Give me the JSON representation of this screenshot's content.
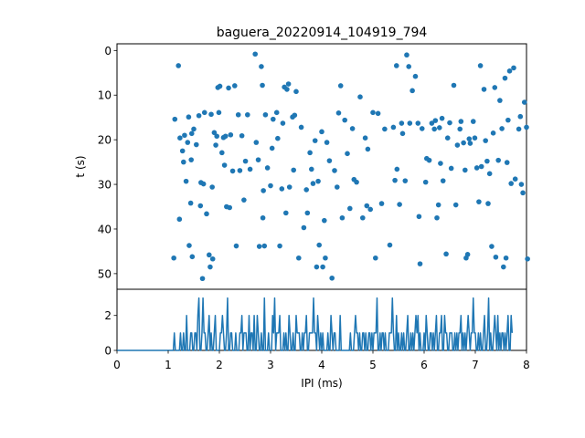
{
  "chart_data": [
    {
      "type": "scatter",
      "title": "baguera_20220914_104919_794",
      "xlabel": "",
      "ylabel": "t (s)",
      "xlim": [
        0,
        8
      ],
      "ylim": [
        53.5,
        -1.5
      ],
      "y_inverted": true,
      "yticks": [
        "0",
        "10",
        "20",
        "30",
        "40",
        "50"
      ],
      "color": "#1f77b4",
      "points": [
        [
          1.11,
          46.5
        ],
        [
          1.13,
          15.4
        ],
        [
          1.2,
          3.4
        ],
        [
          1.22,
          37.8
        ],
        [
          1.23,
          19.6
        ],
        [
          1.28,
          22.5
        ],
        [
          1.3,
          25
        ],
        [
          1.32,
          19
        ],
        [
          1.35,
          29.3
        ],
        [
          1.38,
          20.6
        ],
        [
          1.4,
          14.9
        ],
        [
          1.41,
          43.7
        ],
        [
          1.44,
          34.2
        ],
        [
          1.45,
          24.5
        ],
        [
          1.46,
          18.6
        ],
        [
          1.47,
          46.2
        ],
        [
          1.5,
          17.6
        ],
        [
          1.55,
          21.1
        ],
        [
          1.6,
          14.6
        ],
        [
          1.63,
          34.8
        ],
        [
          1.64,
          29.6
        ],
        [
          1.67,
          51.1
        ],
        [
          1.69,
          29.9
        ],
        [
          1.71,
          13.9
        ],
        [
          1.75,
          36.6
        ],
        [
          1.8,
          45.8
        ],
        [
          1.82,
          48.5
        ],
        [
          1.84,
          14.3
        ],
        [
          1.86,
          30.6
        ],
        [
          1.87,
          46.7
        ],
        [
          1.9,
          18.4
        ],
        [
          1.93,
          21.2
        ],
        [
          1.95,
          19.2
        ],
        [
          1.97,
          8.3
        ],
        [
          1.99,
          13.9
        ],
        [
          2.01,
          8
        ],
        [
          2.05,
          22.9
        ],
        [
          2.08,
          19.5
        ],
        [
          2.1,
          25.7
        ],
        [
          2.12,
          19.2
        ],
        [
          2.14,
          35
        ],
        [
          2.18,
          8.4
        ],
        [
          2.2,
          35.2
        ],
        [
          2.22,
          18.9
        ],
        [
          2.26,
          27
        ],
        [
          2.3,
          7.9
        ],
        [
          2.33,
          43.8
        ],
        [
          2.37,
          14.4
        ],
        [
          2.4,
          26.9
        ],
        [
          2.44,
          19.1
        ],
        [
          2.48,
          33.5
        ],
        [
          2.51,
          24.8
        ],
        [
          2.55,
          14.4
        ],
        [
          2.6,
          26.6
        ],
        [
          2.7,
          0.8
        ],
        [
          2.72,
          20.6
        ],
        [
          2.76,
          24.5
        ],
        [
          2.78,
          43.9
        ],
        [
          2.82,
          3.6
        ],
        [
          2.84,
          7.8
        ],
        [
          2.85,
          37.5
        ],
        [
          2.86,
          31.4
        ],
        [
          2.88,
          43.8
        ],
        [
          2.9,
          14.4
        ],
        [
          2.94,
          26.3
        ],
        [
          3,
          30.3
        ],
        [
          3.03,
          21.9
        ],
        [
          3.05,
          15.4
        ],
        [
          3.12,
          13.9
        ],
        [
          3.14,
          19.7
        ],
        [
          3.18,
          43.8
        ],
        [
          3.22,
          31
        ],
        [
          3.24,
          16.3
        ],
        [
          3.27,
          8.2
        ],
        [
          3.3,
          36.4
        ],
        [
          3.32,
          8.7
        ],
        [
          3.35,
          7.5
        ],
        [
          3.37,
          30.6
        ],
        [
          3.43,
          14.9
        ],
        [
          3.45,
          26.8
        ],
        [
          3.47,
          14.5
        ],
        [
          3.5,
          9.2
        ],
        [
          3.55,
          46.5
        ],
        [
          3.6,
          17.2
        ],
        [
          3.65,
          39.7
        ],
        [
          3.7,
          31.2
        ],
        [
          3.72,
          36.4
        ],
        [
          3.77,
          22.9
        ],
        [
          3.8,
          26.6
        ],
        [
          3.83,
          29.8
        ],
        [
          3.87,
          20.2
        ],
        [
          3.9,
          48.5
        ],
        [
          3.93,
          29.3
        ],
        [
          3.95,
          43.6
        ],
        [
          4,
          18.2
        ],
        [
          4.02,
          48.5
        ],
        [
          4.05,
          38.1
        ],
        [
          4.07,
          46.5
        ],
        [
          4.1,
          20.6
        ],
        [
          4.15,
          24.7
        ],
        [
          4.2,
          51
        ],
        [
          4.25,
          26.9
        ],
        [
          4.3,
          30.6
        ],
        [
          4.33,
          14
        ],
        [
          4.37,
          7.9
        ],
        [
          4.4,
          37.5
        ],
        [
          4.45,
          15.6
        ],
        [
          4.5,
          23.1
        ],
        [
          4.55,
          35.4
        ],
        [
          4.6,
          17.5
        ],
        [
          4.63,
          28.9
        ],
        [
          4.68,
          29.5
        ],
        [
          4.75,
          10.4
        ],
        [
          4.8,
          37.5
        ],
        [
          4.85,
          19.6
        ],
        [
          4.88,
          34.8
        ],
        [
          4.9,
          22.1
        ],
        [
          4.95,
          35.6
        ],
        [
          5,
          13.9
        ],
        [
          5.05,
          46.5
        ],
        [
          5.1,
          14.1
        ],
        [
          5.17,
          34.3
        ],
        [
          5.23,
          17.6
        ],
        [
          5.33,
          43.6
        ],
        [
          5.4,
          17.2
        ],
        [
          5.43,
          29.1
        ],
        [
          5.46,
          3.4
        ],
        [
          5.47,
          26.6
        ],
        [
          5.52,
          34.5
        ],
        [
          5.56,
          16.3
        ],
        [
          5.58,
          18.6
        ],
        [
          5.63,
          29.2
        ],
        [
          5.66,
          1
        ],
        [
          5.7,
          3.6
        ],
        [
          5.72,
          16.3
        ],
        [
          5.77,
          9
        ],
        [
          5.83,
          5.8
        ],
        [
          5.88,
          16.3
        ],
        [
          5.9,
          37.2
        ],
        [
          5.92,
          47.8
        ],
        [
          5.96,
          17.5
        ],
        [
          6.03,
          29.5
        ],
        [
          6.05,
          24.2
        ],
        [
          6.1,
          24.6
        ],
        [
          6.15,
          16.3
        ],
        [
          6.2,
          17.6
        ],
        [
          6.22,
          15.7
        ],
        [
          6.25,
          37.5
        ],
        [
          6.28,
          34.6
        ],
        [
          6.3,
          17.3
        ],
        [
          6.32,
          25.3
        ],
        [
          6.35,
          15.2
        ],
        [
          6.37,
          29.2
        ],
        [
          6.43,
          45.6
        ],
        [
          6.46,
          19.6
        ],
        [
          6.5,
          16.2
        ],
        [
          6.53,
          26.4
        ],
        [
          6.58,
          7.8
        ],
        [
          6.62,
          34.6
        ],
        [
          6.65,
          21.2
        ],
        [
          6.7,
          17.6
        ],
        [
          6.72,
          15.9
        ],
        [
          6.77,
          20.7
        ],
        [
          6.8,
          26.8
        ],
        [
          6.82,
          46.5
        ],
        [
          6.85,
          45.7
        ],
        [
          6.88,
          19.8
        ],
        [
          6.9,
          20.8
        ],
        [
          6.96,
          15.9
        ],
        [
          6.99,
          19.6
        ],
        [
          7.03,
          26.3
        ],
        [
          7.07,
          33.9
        ],
        [
          7.1,
          3.4
        ],
        [
          7.12,
          26
        ],
        [
          7.17,
          8.7
        ],
        [
          7.2,
          20.2
        ],
        [
          7.23,
          24.8
        ],
        [
          7.25,
          34.3
        ],
        [
          7.28,
          27.6
        ],
        [
          7.32,
          43.9
        ],
        [
          7.35,
          18.5
        ],
        [
          7.38,
          8.3
        ],
        [
          7.4,
          46.3
        ],
        [
          7.45,
          24.6
        ],
        [
          7.48,
          11.2
        ],
        [
          7.52,
          17.5
        ],
        [
          7.55,
          48.5
        ],
        [
          7.58,
          6.2
        ],
        [
          7.6,
          46.5
        ],
        [
          7.62,
          25.1
        ],
        [
          7.64,
          15.6
        ],
        [
          7.67,
          4.6
        ],
        [
          7.7,
          29.8
        ],
        [
          7.75,
          3.9
        ],
        [
          7.78,
          28.8
        ],
        [
          7.85,
          17.6
        ],
        [
          7.88,
          14.8
        ],
        [
          7.9,
          30
        ],
        [
          7.93,
          31.9
        ],
        [
          7.96,
          11.6
        ],
        [
          8,
          17.2
        ],
        [
          8.02,
          46.7
        ]
      ]
    },
    {
      "type": "line",
      "title": "",
      "xlabel": "IPI (ms)",
      "ylabel": "",
      "xlim": [
        0,
        8
      ],
      "ylim": [
        0,
        3.5
      ],
      "xticks": [
        "0",
        "1",
        "2",
        "3",
        "4",
        "5",
        "6",
        "7",
        "8"
      ],
      "yticks": [
        "0",
        "2"
      ],
      "color": "#1f77b4",
      "x_start": 0,
      "x_step": 0.02,
      "y": [
        0,
        0,
        0,
        0,
        0,
        0,
        0,
        0,
        0,
        0,
        0,
        0,
        0,
        0,
        0,
        0,
        0,
        0,
        0,
        0,
        0,
        0,
        0,
        0,
        0,
        0,
        0,
        0,
        0,
        0,
        0,
        0,
        0,
        0,
        0,
        0,
        0,
        0,
        0,
        0,
        0,
        0,
        0,
        0,
        0,
        0,
        0,
        0,
        0,
        0,
        0,
        0,
        0,
        0,
        0,
        0,
        1,
        0,
        0,
        0,
        0,
        0,
        1,
        0,
        0,
        1,
        0,
        0,
        2,
        0,
        0,
        0,
        1,
        1,
        0,
        0,
        1,
        1,
        0,
        2,
        3,
        0,
        0,
        1,
        3,
        1,
        1,
        0,
        0,
        1,
        2,
        0,
        1,
        0,
        0,
        1,
        2,
        0,
        0,
        0,
        0,
        1,
        1,
        2,
        1,
        0,
        0,
        1,
        3,
        0,
        0,
        1,
        1,
        0,
        0,
        0,
        1,
        0,
        0,
        0,
        1,
        1,
        2,
        0,
        1,
        1,
        1,
        0,
        0,
        2,
        0,
        1,
        1,
        0,
        2,
        0,
        0,
        2,
        1,
        0,
        0,
        1,
        0,
        0,
        3,
        0,
        0,
        0,
        1,
        0,
        0,
        0,
        2,
        1,
        3,
        0,
        1,
        1,
        1,
        2,
        0,
        0,
        0,
        1,
        0,
        1,
        0,
        0,
        2,
        1,
        0,
        0,
        1,
        0,
        0,
        2,
        1,
        1,
        1,
        0,
        0,
        1,
        0,
        1,
        1,
        2,
        0,
        0,
        1,
        1,
        1,
        1,
        3,
        1,
        1,
        0,
        2,
        1,
        0,
        1,
        0,
        1,
        0,
        0,
        0,
        0,
        1,
        0,
        0,
        2,
        1,
        0,
        1,
        1,
        0,
        0,
        0,
        0,
        2,
        0,
        0,
        0,
        0,
        0,
        0,
        0,
        0,
        0,
        1,
        0,
        0,
        0,
        1,
        2,
        1,
        1,
        0,
        1,
        0,
        0,
        1,
        1,
        0,
        1,
        0,
        0,
        1,
        1,
        0,
        1,
        0,
        1,
        1,
        1,
        3,
        0,
        0,
        1,
        0,
        1,
        1,
        0,
        1,
        0,
        0,
        0,
        1,
        1,
        1,
        3,
        1,
        0,
        0,
        2,
        0,
        1,
        0,
        0,
        1,
        0,
        1,
        0,
        0,
        1,
        2,
        0,
        0,
        1,
        0,
        1,
        0,
        1,
        2,
        1,
        2,
        0,
        1,
        0,
        0,
        0,
        1,
        0,
        2,
        1,
        0,
        0,
        1,
        1,
        0,
        1,
        0,
        1,
        2,
        0,
        0,
        1,
        1,
        2,
        0,
        0,
        2,
        1,
        1,
        0,
        0,
        1,
        1,
        1,
        0,
        0,
        1,
        0,
        1,
        0,
        1,
        1,
        2,
        0,
        1,
        0,
        1,
        0,
        1,
        2,
        1,
        0,
        1,
        1,
        3,
        1,
        1,
        0,
        0,
        1,
        0,
        1,
        0,
        0,
        1,
        2,
        0,
        0,
        1,
        3,
        0,
        1,
        0,
        0,
        1,
        2,
        1,
        0,
        2,
        0,
        1,
        0,
        1,
        1,
        0,
        1,
        0,
        1,
        2,
        0,
        0,
        2,
        1
      ]
    }
  ]
}
